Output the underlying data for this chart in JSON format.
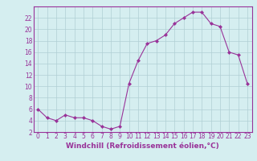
{
  "x": [
    0,
    1,
    2,
    3,
    4,
    5,
    6,
    7,
    8,
    9,
    10,
    11,
    12,
    13,
    14,
    15,
    16,
    17,
    18,
    19,
    20,
    21,
    22,
    23
  ],
  "y": [
    6,
    4.5,
    4,
    5,
    4.5,
    4.5,
    4,
    3,
    2.5,
    3,
    10.5,
    14.5,
    17.5,
    18,
    19,
    21,
    22,
    23,
    23,
    21,
    20.5,
    16,
    15.5,
    10.5
  ],
  "line_color": "#993399",
  "marker_color": "#993399",
  "bg_color": "#d5eef0",
  "grid_color": "#b0cfd4",
  "xlabel": "Windchill (Refroidissement éolien,°C)",
  "xlabel_color": "#993399",
  "tick_color": "#993399",
  "ylim": [
    2,
    24
  ],
  "yticks": [
    2,
    4,
    6,
    8,
    10,
    12,
    14,
    16,
    18,
    20,
    22
  ],
  "xticks": [
    0,
    1,
    2,
    3,
    4,
    5,
    6,
    7,
    8,
    9,
    10,
    11,
    12,
    13,
    14,
    15,
    16,
    17,
    18,
    19,
    20,
    21,
    22,
    23
  ],
  "spine_color": "#993399",
  "font_size_ticks": 5.5,
  "font_size_label": 6.5
}
